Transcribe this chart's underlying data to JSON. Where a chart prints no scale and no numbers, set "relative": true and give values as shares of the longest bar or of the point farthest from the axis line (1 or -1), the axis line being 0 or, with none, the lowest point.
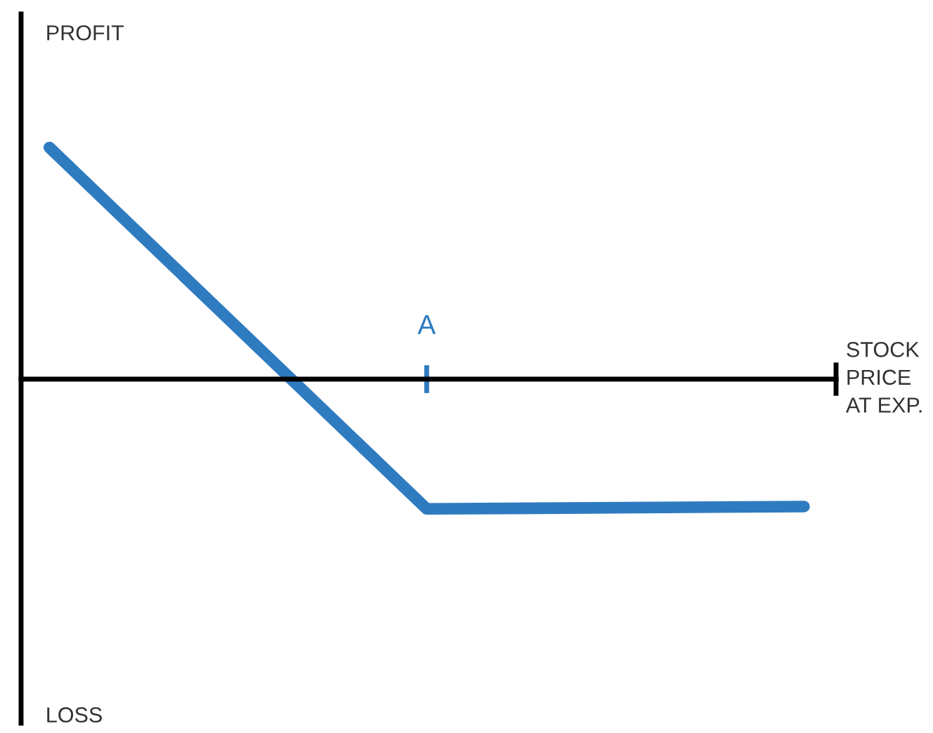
{
  "chart_data": {
    "type": "line",
    "relative": true,
    "xlabel": "STOCK\nPRICE\nAT EXP.",
    "categories": [
      null,
      null,
      null
    ],
    "series": [
      {
        "color": "#2f7bc0",
        "values": [
          1,
          -0.56,
          -0.55
        ]
      }
    ],
    "annotations": [
      "PROFIT",
      "LOSS",
      "A"
    ],
    "grid": false,
    "marker": "none",
    "line_style": "solid"
  }
}
